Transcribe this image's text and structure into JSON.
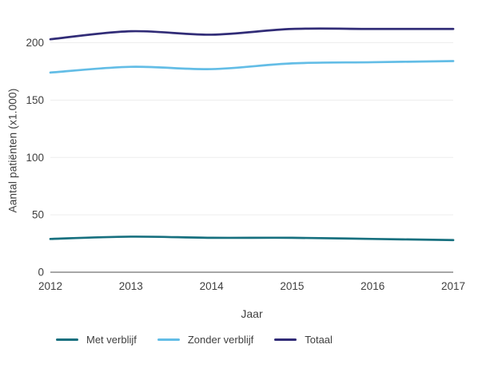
{
  "chart_data": {
    "type": "line",
    "title": "",
    "xlabel": "Jaar",
    "ylabel": "Aantal patiënten (x1.000)",
    "x": [
      2012,
      2013,
      2014,
      2015,
      2016,
      2017
    ],
    "xlim": [
      2012,
      2017
    ],
    "ylim": [
      0,
      220
    ],
    "yticks": [
      0,
      50,
      100,
      150,
      200
    ],
    "grid": "horizontal-only",
    "legend_position": "bottom",
    "line_style": "smooth-no-markers",
    "series": [
      {
        "name": "Met verblijf",
        "color": "#17707f",
        "values": [
          29,
          31,
          30,
          30,
          29,
          28
        ]
      },
      {
        "name": "Zonder verblijf",
        "color": "#63bde6",
        "values": [
          174,
          179,
          177,
          182,
          183,
          184
        ]
      },
      {
        "name": "Totaal",
        "color": "#312c77",
        "values": [
          203,
          210,
          207,
          212,
          212,
          212
        ]
      }
    ]
  },
  "colors": {
    "background": "#ffffff",
    "text": "#3f3f3f",
    "grid": "#ededed",
    "axis": "#8a8a8a"
  }
}
